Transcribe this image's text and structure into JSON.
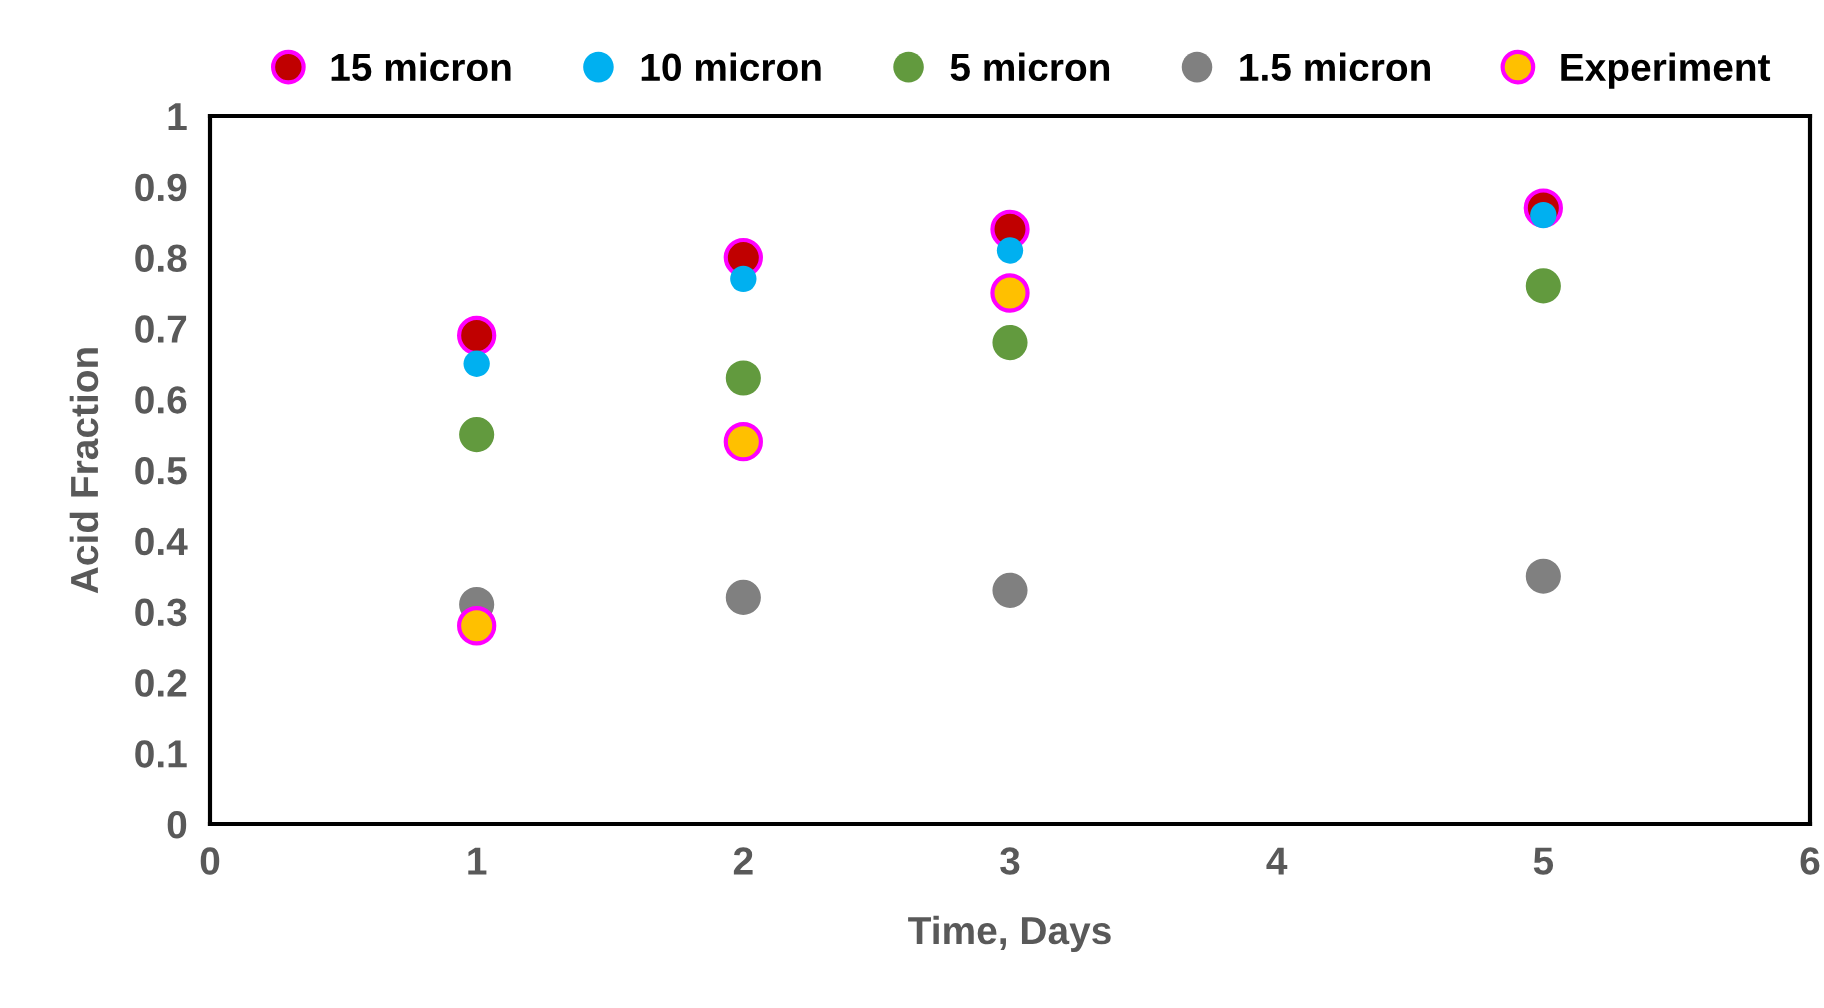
{
  "chart_data": {
    "type": "scatter",
    "xlabel": "Time, Days",
    "ylabel": "Acid Fraction",
    "xlim": [
      0,
      6
    ],
    "xticks": [
      0,
      1,
      2,
      3,
      4,
      5,
      6
    ],
    "ylim": [
      0,
      1
    ],
    "yticks": [
      0,
      0.1,
      0.2,
      0.3,
      0.4,
      0.5,
      0.6,
      0.7,
      0.8,
      0.9,
      1
    ],
    "grid": false,
    "legend": "top",
    "marker": "circle",
    "series": [
      {
        "name": "15 micron",
        "color": "#c00000",
        "x": [
          1,
          2,
          3,
          5
        ],
        "values": [
          0.69,
          0.8,
          0.84,
          0.87
        ]
      },
      {
        "name": "10 micron",
        "color": "#00b0f0",
        "x": [
          1,
          2,
          3,
          5
        ],
        "values": [
          0.65,
          0.77,
          0.81,
          0.86
        ]
      },
      {
        "name": "5 micron",
        "color": "#629a3e",
        "x": [
          1,
          2,
          3,
          5
        ],
        "values": [
          0.55,
          0.63,
          0.68,
          0.76
        ]
      },
      {
        "name": "1.5 micron",
        "color": "#808080",
        "x": [
          1,
          2,
          3,
          5
        ],
        "values": [
          0.31,
          0.32,
          0.33,
          0.35
        ]
      },
      {
        "name": "Experiment",
        "color": "#ffc000",
        "x": [
          1,
          2,
          3
        ],
        "values": [
          0.28,
          0.54,
          0.75
        ]
      }
    ]
  }
}
